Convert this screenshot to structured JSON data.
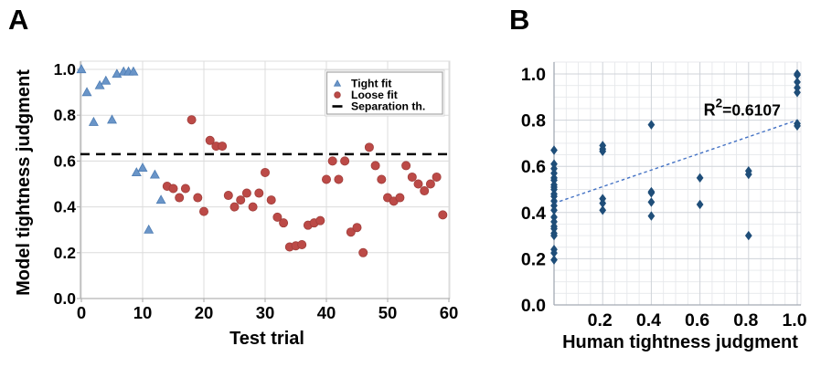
{
  "figure": {
    "panels": [
      {
        "label": "A"
      },
      {
        "label": "B"
      }
    ]
  },
  "chart_data": [
    {
      "type": "scatter",
      "panel": "A",
      "title": "",
      "xlabel": "Test trial",
      "ylabel": "Model tightness judgment",
      "xlim": [
        0,
        61
      ],
      "ylim": [
        0,
        1.03
      ],
      "grid": "major",
      "xticks": {
        "values": [
          0,
          10,
          20,
          30,
          40,
          50,
          60
        ],
        "labels": [
          "0",
          "10",
          "20",
          "30",
          "40",
          "50",
          "60"
        ]
      },
      "yticks": {
        "values": [
          0,
          0.2,
          0.4,
          0.6,
          0.8,
          1.0
        ],
        "labels": [
          "0.0",
          "0.2",
          "0.4",
          "0.6",
          "0.8",
          "1.0"
        ]
      },
      "legend": {
        "position": "upper-right",
        "entries": [
          "Tight fit",
          "Loose fit",
          "Separation th."
        ]
      },
      "series": [
        {
          "name": "Tight fit",
          "marker": "triangle",
          "color": "#6A95C8",
          "edge": "#4E7DB4",
          "points": [
            [
              0,
              1.0
            ],
            [
              0.9,
              0.9
            ],
            [
              2,
              0.77
            ],
            [
              3,
              0.93
            ],
            [
              4,
              0.95
            ],
            [
              5,
              0.78
            ],
            [
              5.8,
              0.98
            ],
            [
              6.9,
              0.99
            ],
            [
              7.7,
              0.99
            ],
            [
              8.5,
              0.99
            ],
            [
              9,
              0.55
            ],
            [
              10,
              0.57
            ],
            [
              11,
              0.3
            ],
            [
              12,
              0.54
            ],
            [
              13,
              0.43
            ]
          ]
        },
        {
          "name": "Loose fit",
          "marker": "circle",
          "color": "#BC4A47",
          "edge": "#A03E3B",
          "points": [
            [
              14,
              0.49
            ],
            [
              15,
              0.48
            ],
            [
              16,
              0.44
            ],
            [
              17,
              0.48
            ],
            [
              18,
              0.78
            ],
            [
              19,
              0.44
            ],
            [
              20,
              0.38
            ],
            [
              21,
              0.69
            ],
            [
              22,
              0.665
            ],
            [
              23,
              0.665
            ],
            [
              24,
              0.45
            ],
            [
              25,
              0.4
            ],
            [
              26,
              0.43
            ],
            [
              27,
              0.46
            ],
            [
              28,
              0.4
            ],
            [
              29,
              0.46
            ],
            [
              30,
              0.55
            ],
            [
              31,
              0.43
            ],
            [
              32,
              0.355
            ],
            [
              33,
              0.33
            ],
            [
              34,
              0.225
            ],
            [
              35,
              0.23
            ],
            [
              36,
              0.235
            ],
            [
              37,
              0.32
            ],
            [
              38,
              0.33
            ],
            [
              39,
              0.34
            ],
            [
              40,
              0.52
            ],
            [
              41,
              0.6
            ],
            [
              42,
              0.52
            ],
            [
              43,
              0.6
            ],
            [
              44,
              0.29
            ],
            [
              45,
              0.31
            ],
            [
              46,
              0.2
            ],
            [
              47,
              0.66
            ],
            [
              48,
              0.58
            ],
            [
              49,
              0.52
            ],
            [
              50,
              0.44
            ],
            [
              51,
              0.425
            ],
            [
              52,
              0.44
            ],
            [
              53,
              0.58
            ],
            [
              54,
              0.53
            ],
            [
              55,
              0.5
            ],
            [
              56,
              0.47
            ],
            [
              57,
              0.5
            ],
            [
              58,
              0.53
            ],
            [
              59,
              0.365
            ]
          ]
        }
      ],
      "threshold": {
        "name": "Separation th.",
        "value": 0.63,
        "color": "#000000",
        "dash": true
      }
    },
    {
      "type": "scatter",
      "panel": "B",
      "title": "",
      "xlabel": "Human tightness judgment",
      "ylabel": "",
      "xlim": [
        0,
        1.02
      ],
      "ylim": [
        0,
        1.05
      ],
      "grid": "minor",
      "xticks": {
        "values": [
          0.2,
          0.4,
          0.6,
          0.8,
          1.0
        ],
        "labels": [
          "0.2",
          "0.4",
          "0.6",
          "0.8",
          "1.0"
        ]
      },
      "yticks": {
        "values": [
          0,
          0.2,
          0.4,
          0.6,
          0.8,
          1.0
        ],
        "labels": [
          "0.0",
          "0.2",
          "0.4",
          "0.6",
          "0.8",
          "1.0"
        ]
      },
      "series": [
        {
          "name": "Model vs human judgment",
          "marker": "diamond",
          "color": "#1F4E79",
          "edge": "#1F4E79",
          "points": [
            [
              0,
              0.67
            ],
            [
              0,
              0.61
            ],
            [
              0,
              0.59
            ],
            [
              0,
              0.57
            ],
            [
              0,
              0.55
            ],
            [
              0,
              0.54
            ],
            [
              0,
              0.52
            ],
            [
              0,
              0.51
            ],
            [
              0,
              0.5
            ],
            [
              0,
              0.48
            ],
            [
              0,
              0.47
            ],
            [
              0,
              0.45
            ],
            [
              0,
              0.43
            ],
            [
              0,
              0.41
            ],
            [
              0,
              0.38
            ],
            [
              0,
              0.36
            ],
            [
              0,
              0.34
            ],
            [
              0,
              0.33
            ],
            [
              0,
              0.31
            ],
            [
              0,
              0.3
            ],
            [
              0,
              0.24
            ],
            [
              0,
              0.225
            ],
            [
              0,
              0.195
            ],
            [
              0.2,
              0.69
            ],
            [
              0.2,
              0.675
            ],
            [
              0.2,
              0.665
            ],
            [
              0.2,
              0.46
            ],
            [
              0.2,
              0.44
            ],
            [
              0.2,
              0.41
            ],
            [
              0.4,
              0.78
            ],
            [
              0.4,
              0.49
            ],
            [
              0.4,
              0.485
            ],
            [
              0.4,
              0.445
            ],
            [
              0.4,
              0.385
            ],
            [
              0.6,
              0.55
            ],
            [
              0.6,
              0.435
            ],
            [
              0.8,
              0.58
            ],
            [
              0.8,
              0.565
            ],
            [
              0.8,
              0.3
            ],
            [
              1.0,
              1.0
            ],
            [
              1.0,
              0.995
            ],
            [
              1.0,
              0.965
            ],
            [
              1.0,
              0.94
            ],
            [
              1.0,
              0.92
            ],
            [
              1.0,
              0.785
            ],
            [
              1.0,
              0.775
            ]
          ]
        }
      ],
      "trendline": {
        "from": [
          0,
          0.44
        ],
        "to": [
          1.0,
          0.8
        ],
        "color": "#4472C4",
        "dash": true,
        "r_squared": 0.6107
      },
      "annotation": {
        "base": "R",
        "sup": "2",
        "rest": "=0.6107",
        "x": 0.615,
        "y": 0.82
      }
    }
  ]
}
